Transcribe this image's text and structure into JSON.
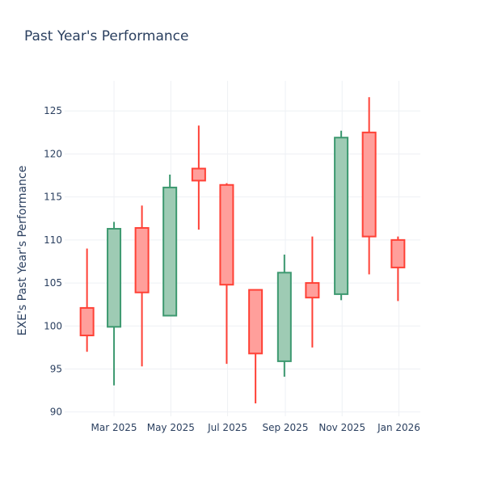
{
  "chart_data": {
    "type": "candlestick",
    "title": "Past Year's Performance",
    "xlabel": "",
    "ylabel": "EXE's Past Year's Performance",
    "ylim": [
      89.5,
      128.5
    ],
    "yticks": [
      90,
      95,
      100,
      105,
      110,
      115,
      120,
      125
    ],
    "xlim": [
      "2025-01-07",
      "2026-01-24"
    ],
    "xticks": [
      {
        "date": "2025-03-01",
        "label": "Mar 2025"
      },
      {
        "date": "2025-05-01",
        "label": "May 2025"
      },
      {
        "date": "2025-07-01",
        "label": "Jul 2025"
      },
      {
        "date": "2025-09-01",
        "label": "Sep 2025"
      },
      {
        "date": "2025-11-01",
        "label": "Nov 2025"
      },
      {
        "date": "2026-01-01",
        "label": "Jan 2026"
      }
    ],
    "colors": {
      "increasing_line": "#3d9970",
      "increasing_fill": "#9ecbb4",
      "decreasing_line": "#ff4136",
      "decreasing_fill": "#ff9f9b"
    },
    "candles": [
      {
        "date": "2025-01-31",
        "open": 102.1,
        "high": 109.0,
        "low": 97.0,
        "close": 98.9
      },
      {
        "date": "2025-03-01",
        "open": 99.9,
        "high": 112.1,
        "low": 93.1,
        "close": 111.3
      },
      {
        "date": "2025-03-31",
        "open": 111.4,
        "high": 114.0,
        "low": 95.3,
        "close": 103.9
      },
      {
        "date": "2025-04-30",
        "open": 101.2,
        "high": 117.6,
        "low": 101.2,
        "close": 116.1
      },
      {
        "date": "2025-05-31",
        "open": 118.3,
        "high": 123.3,
        "low": 111.2,
        "close": 116.9
      },
      {
        "date": "2025-06-30",
        "open": 116.4,
        "high": 116.6,
        "low": 95.6,
        "close": 104.8
      },
      {
        "date": "2025-07-31",
        "open": 104.2,
        "high": 104.2,
        "low": 91.0,
        "close": 96.8
      },
      {
        "date": "2025-08-31",
        "open": 95.9,
        "high": 108.3,
        "low": 94.1,
        "close": 106.2
      },
      {
        "date": "2025-09-30",
        "open": 105.0,
        "high": 110.4,
        "low": 97.5,
        "close": 103.3
      },
      {
        "date": "2025-10-31",
        "open": 103.7,
        "high": 122.7,
        "low": 103.0,
        "close": 121.9
      },
      {
        "date": "2025-11-30",
        "open": 122.5,
        "high": 126.6,
        "low": 106.0,
        "close": 110.4
      },
      {
        "date": "2025-12-31",
        "open": 110.0,
        "high": 110.4,
        "low": 102.9,
        "close": 106.8
      }
    ]
  }
}
